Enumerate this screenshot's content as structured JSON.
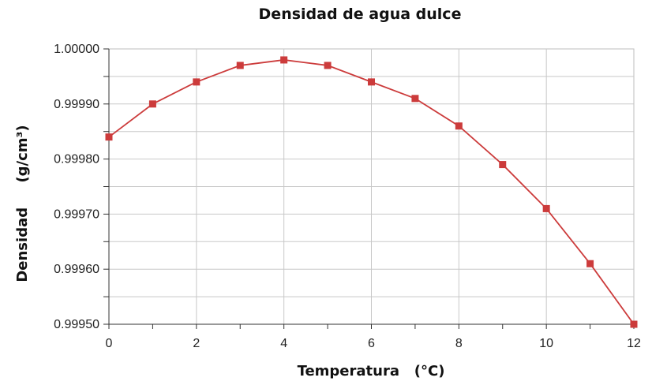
{
  "chart_data": {
    "type": "line",
    "title": "Densidad de agua dulce",
    "xlabel": "Temperatura   (°C)",
    "ylabel": "Densidad     (g/cm³)",
    "xlim": [
      0,
      12
    ],
    "ylim": [
      0.9995,
      1.0
    ],
    "x_ticks": [
      "0",
      "2",
      "4",
      "6",
      "8",
      "10",
      "12"
    ],
    "y_ticks": [
      "0.99950",
      "0.99960",
      "0.99970",
      "0.99980",
      "0.99990",
      "1.00000"
    ],
    "grid": true,
    "color": "#cc3b3b",
    "series": [
      {
        "x": [
          0,
          1,
          2,
          3,
          4,
          5,
          6,
          7,
          8,
          9,
          10,
          11,
          12
        ],
        "values": [
          0.99984,
          0.9999,
          0.99994,
          0.99997,
          0.99998,
          0.99997,
          0.99994,
          0.99991,
          0.99986,
          0.99979,
          0.99971,
          0.99961,
          0.9995
        ]
      }
    ]
  }
}
